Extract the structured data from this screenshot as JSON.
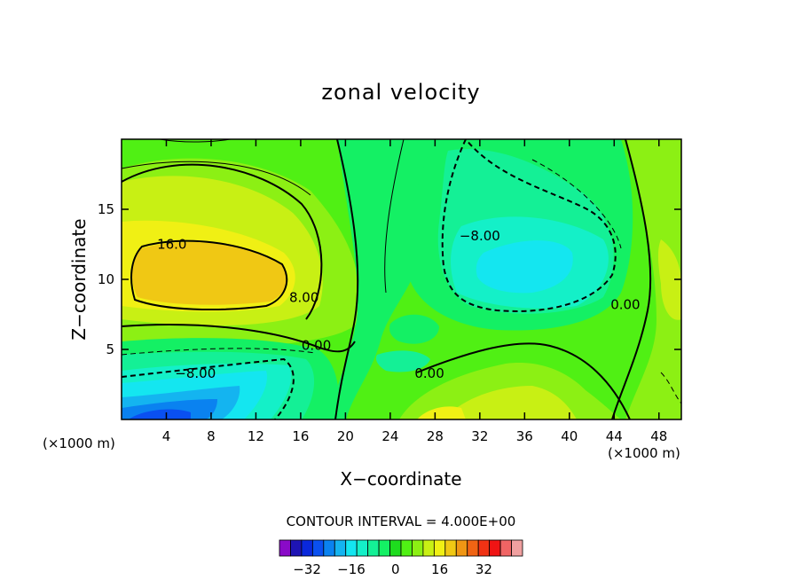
{
  "chart_data": {
    "type": "heatmap",
    "title": "zonal velocity",
    "xlabel": "X−coordinate",
    "ylabel": "Z−coordinate",
    "x_units_left": "(×1000 m)",
    "x_units_right": "(×1000 m)",
    "xlim": [
      0,
      50
    ],
    "ylim": [
      0,
      20
    ],
    "x_ticks": [
      4,
      8,
      12,
      16,
      20,
      24,
      28,
      32,
      36,
      40,
      44,
      48
    ],
    "y_ticks": [
      5,
      10,
      15
    ],
    "contour_interval_label": "CONTOUR INTERVAL = 4.000E+00",
    "contour_labels": [
      {
        "text": "16.0",
        "x": 4.5,
        "y": 12.5
      },
      {
        "text": "8.00",
        "x": 16.3,
        "y": 8.7
      },
      {
        "text": "0.00",
        "x": 17.4,
        "y": 5.3
      },
      {
        "text": "−8.00",
        "x": 6.6,
        "y": 3.3
      },
      {
        "text": "0.00",
        "x": 27.5,
        "y": 3.3
      },
      {
        "text": "−8.00",
        "x": 32.0,
        "y": 13.1
      },
      {
        "text": "0.00",
        "x": 45.0,
        "y": 8.2
      }
    ],
    "colorbar": {
      "levels": [
        -36,
        -32,
        -28,
        -24,
        -20,
        -16,
        -12,
        -8,
        -4,
        0,
        4,
        8,
        12,
        16,
        20,
        24,
        28,
        32,
        36
      ],
      "tick_labels": [
        "−32",
        "−16",
        "0",
        "16",
        "32"
      ],
      "tick_values": [
        -32,
        -16,
        0,
        16,
        32
      ],
      "colors": [
        "#8a0ac8",
        "#1e14b4",
        "#0a28dc",
        "#0a50f0",
        "#0a82f0",
        "#14b4f0",
        "#14e6f0",
        "#14f0c8",
        "#14f096",
        "#14f064",
        "#1edc1e",
        "#50f014",
        "#8cf014",
        "#c8f014",
        "#f0f014",
        "#f0c814",
        "#f09614",
        "#f06414",
        "#f03214",
        "#f01414",
        "#f06464",
        "#f0a0a0"
      ]
    }
  }
}
